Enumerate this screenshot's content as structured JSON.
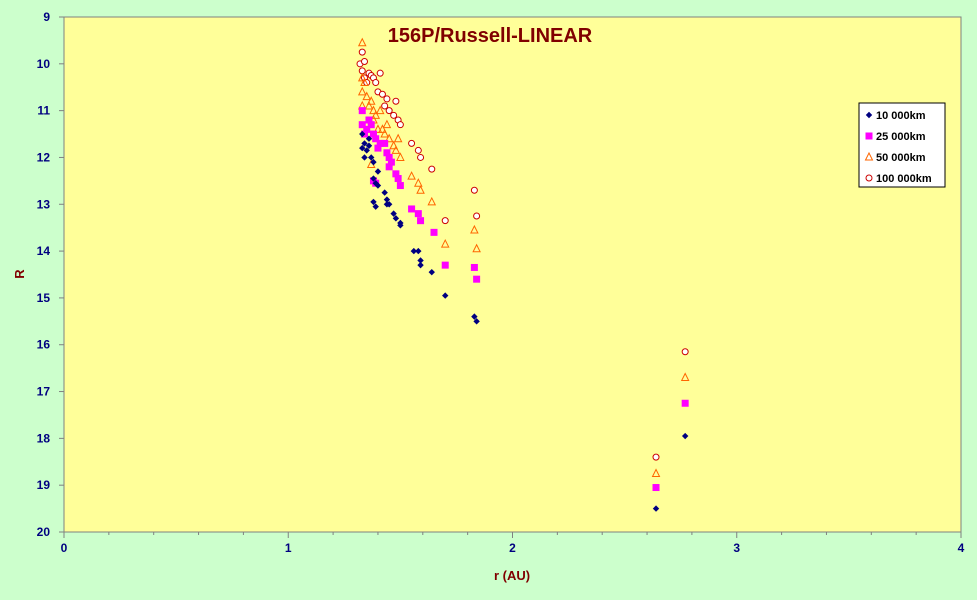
{
  "chart_data": {
    "type": "scatter",
    "title": "156P/Russell-LINEAR",
    "xlabel": "r (AU)",
    "ylabel": "R",
    "xlim": [
      0,
      4
    ],
    "ylim": [
      9,
      20
    ],
    "y_inverted": true,
    "x_ticks": [
      "0",
      "1",
      "2",
      "3",
      "4"
    ],
    "y_ticks": [
      "9",
      "10",
      "11",
      "12",
      "13",
      "14",
      "15",
      "16",
      "17",
      "18",
      "19",
      "20"
    ],
    "grid": false,
    "legend_position": "right",
    "colors": {
      "page_background": "#ccffcc",
      "plot_background": "#ffff99",
      "axis_label": "#000080",
      "title": "#800000"
    },
    "series": [
      {
        "name": "10 000km",
        "marker": "diamond",
        "color": "#000080",
        "points": [
          [
            1.33,
            11.5
          ],
          [
            1.33,
            11.8
          ],
          [
            1.34,
            11.7
          ],
          [
            1.34,
            12.0
          ],
          [
            1.35,
            11.85
          ],
          [
            1.36,
            11.6
          ],
          [
            1.36,
            11.75
          ],
          [
            1.37,
            12.0
          ],
          [
            1.38,
            12.1
          ],
          [
            1.38,
            12.45
          ],
          [
            1.39,
            12.55
          ],
          [
            1.38,
            12.95
          ],
          [
            1.39,
            13.05
          ],
          [
            1.4,
            12.3
          ],
          [
            1.4,
            12.6
          ],
          [
            1.43,
            12.75
          ],
          [
            1.44,
            12.9
          ],
          [
            1.44,
            13.0
          ],
          [
            1.45,
            13.0
          ],
          [
            1.47,
            13.2
          ],
          [
            1.48,
            13.3
          ],
          [
            1.5,
            13.4
          ],
          [
            1.5,
            13.45
          ],
          [
            1.56,
            14.0
          ],
          [
            1.58,
            14.0
          ],
          [
            1.59,
            14.2
          ],
          [
            1.59,
            14.3
          ],
          [
            1.64,
            14.45
          ],
          [
            1.7,
            14.95
          ],
          [
            1.83,
            15.4
          ],
          [
            1.84,
            15.5
          ],
          [
            2.64,
            19.5
          ],
          [
            2.77,
            17.95
          ]
        ]
      },
      {
        "name": "25 000km",
        "marker": "square",
        "color": "#ff00ff",
        "points": [
          [
            1.33,
            11.0
          ],
          [
            1.33,
            11.3
          ],
          [
            1.34,
            11.5
          ],
          [
            1.35,
            11.4
          ],
          [
            1.36,
            11.2
          ],
          [
            1.37,
            11.3
          ],
          [
            1.38,
            11.5
          ],
          [
            1.39,
            11.6
          ],
          [
            1.4,
            11.8
          ],
          [
            1.41,
            11.7
          ],
          [
            1.38,
            12.5
          ],
          [
            1.39,
            12.55
          ],
          [
            1.43,
            11.7
          ],
          [
            1.44,
            11.9
          ],
          [
            1.45,
            12.0
          ],
          [
            1.45,
            12.2
          ],
          [
            1.46,
            12.1
          ],
          [
            1.48,
            12.35
          ],
          [
            1.49,
            12.45
          ],
          [
            1.5,
            12.6
          ],
          [
            1.55,
            13.1
          ],
          [
            1.58,
            13.2
          ],
          [
            1.59,
            13.35
          ],
          [
            1.65,
            13.6
          ],
          [
            1.7,
            14.3
          ],
          [
            1.83,
            14.35
          ],
          [
            1.84,
            14.6
          ],
          [
            2.64,
            19.05
          ],
          [
            2.77,
            17.25
          ]
        ]
      },
      {
        "name": "50 000km",
        "marker": "triangle",
        "color": "#ff6600",
        "points": [
          [
            1.33,
            9.55
          ],
          [
            1.33,
            10.3
          ],
          [
            1.33,
            10.6
          ],
          [
            1.33,
            10.9
          ],
          [
            1.34,
            10.4
          ],
          [
            1.35,
            10.7
          ],
          [
            1.36,
            10.9
          ],
          [
            1.37,
            10.8
          ],
          [
            1.38,
            11.0
          ],
          [
            1.38,
            11.2
          ],
          [
            1.39,
            11.1
          ],
          [
            1.4,
            11.4
          ],
          [
            1.41,
            11.0
          ],
          [
            1.42,
            11.4
          ],
          [
            1.43,
            11.5
          ],
          [
            1.44,
            11.3
          ],
          [
            1.45,
            11.6
          ],
          [
            1.47,
            11.75
          ],
          [
            1.48,
            11.85
          ],
          [
            1.49,
            11.6
          ],
          [
            1.5,
            12.0
          ],
          [
            1.55,
            12.4
          ],
          [
            1.58,
            12.55
          ],
          [
            1.59,
            12.7
          ],
          [
            1.64,
            12.95
          ],
          [
            1.7,
            13.85
          ],
          [
            1.83,
            13.55
          ],
          [
            1.84,
            13.95
          ],
          [
            1.37,
            12.15
          ],
          [
            2.64,
            18.75
          ],
          [
            2.77,
            16.7
          ]
        ]
      },
      {
        "name": "100 000km",
        "marker": "circle",
        "color": "#cc0000",
        "points": [
          [
            1.32,
            10.0
          ],
          [
            1.33,
            9.75
          ],
          [
            1.33,
            10.15
          ],
          [
            1.34,
            9.95
          ],
          [
            1.34,
            10.3
          ],
          [
            1.35,
            10.4
          ],
          [
            1.36,
            10.2
          ],
          [
            1.37,
            10.25
          ],
          [
            1.38,
            10.3
          ],
          [
            1.39,
            10.4
          ],
          [
            1.4,
            10.6
          ],
          [
            1.41,
            10.2
          ],
          [
            1.42,
            10.65
          ],
          [
            1.43,
            10.9
          ],
          [
            1.44,
            10.75
          ],
          [
            1.45,
            11.0
          ],
          [
            1.47,
            11.1
          ],
          [
            1.48,
            10.8
          ],
          [
            1.49,
            11.2
          ],
          [
            1.5,
            11.3
          ],
          [
            1.55,
            11.7
          ],
          [
            1.58,
            11.85
          ],
          [
            1.59,
            12.0
          ],
          [
            1.64,
            12.25
          ],
          [
            1.7,
            13.35
          ],
          [
            1.83,
            12.7
          ],
          [
            1.84,
            13.25
          ],
          [
            2.64,
            18.4
          ],
          [
            2.77,
            16.15
          ]
        ]
      }
    ]
  }
}
